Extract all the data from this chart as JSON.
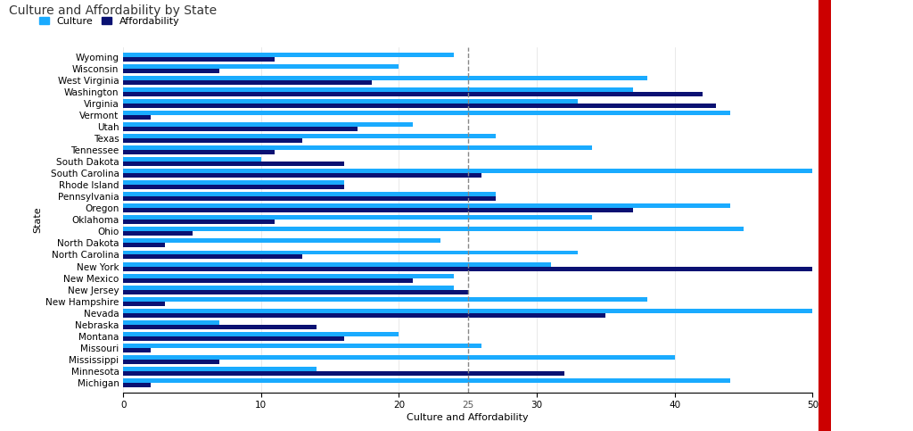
{
  "title": "Culture and Affordability by State",
  "xlabel": "Culture and Affordability",
  "ylabel": "State",
  "legend_labels": [
    "Culture",
    "Affordability"
  ],
  "culture_color": "#1AABFF",
  "affordability_color": "#0A1172",
  "dashed_line_x": 25,
  "xlim": [
    0,
    50
  ],
  "states_top_to_bottom": [
    "Wyoming",
    "Wisconsin",
    "West Virginia",
    "Washington",
    "Virginia",
    "Vermont",
    "Utah",
    "Texas",
    "Tennessee",
    "South Dakota",
    "South Carolina",
    "Rhode Island",
    "Pennsylvania",
    "Oregon",
    "Oklahoma",
    "Ohio",
    "North Dakota",
    "North Carolina",
    "New York",
    "New Mexico",
    "New Jersey",
    "New Hampshire",
    "Nevada",
    "Nebraska",
    "Montana",
    "Missouri",
    "Mississippi",
    "Minnesota",
    "Michigan"
  ],
  "culture_top_to_bottom": [
    24,
    20,
    38,
    37,
    33,
    44,
    21,
    27,
    34,
    10,
    50,
    16,
    27,
    44,
    34,
    45,
    23,
    33,
    31,
    24,
    24,
    38,
    50,
    7,
    20,
    26,
    40,
    14,
    44
  ],
  "affordability_top_to_bottom": [
    11,
    7,
    18,
    42,
    43,
    2,
    17,
    13,
    11,
    16,
    26,
    16,
    27,
    37,
    11,
    5,
    3,
    13,
    50,
    21,
    25,
    3,
    35,
    14,
    16,
    2,
    7,
    32,
    2
  ],
  "background_color": "#FFFFFF",
  "title_fontsize": 10,
  "axis_fontsize": 8,
  "tick_fontsize": 7.5,
  "bar_height": 0.38,
  "right_panel_color": "#CC0000"
}
